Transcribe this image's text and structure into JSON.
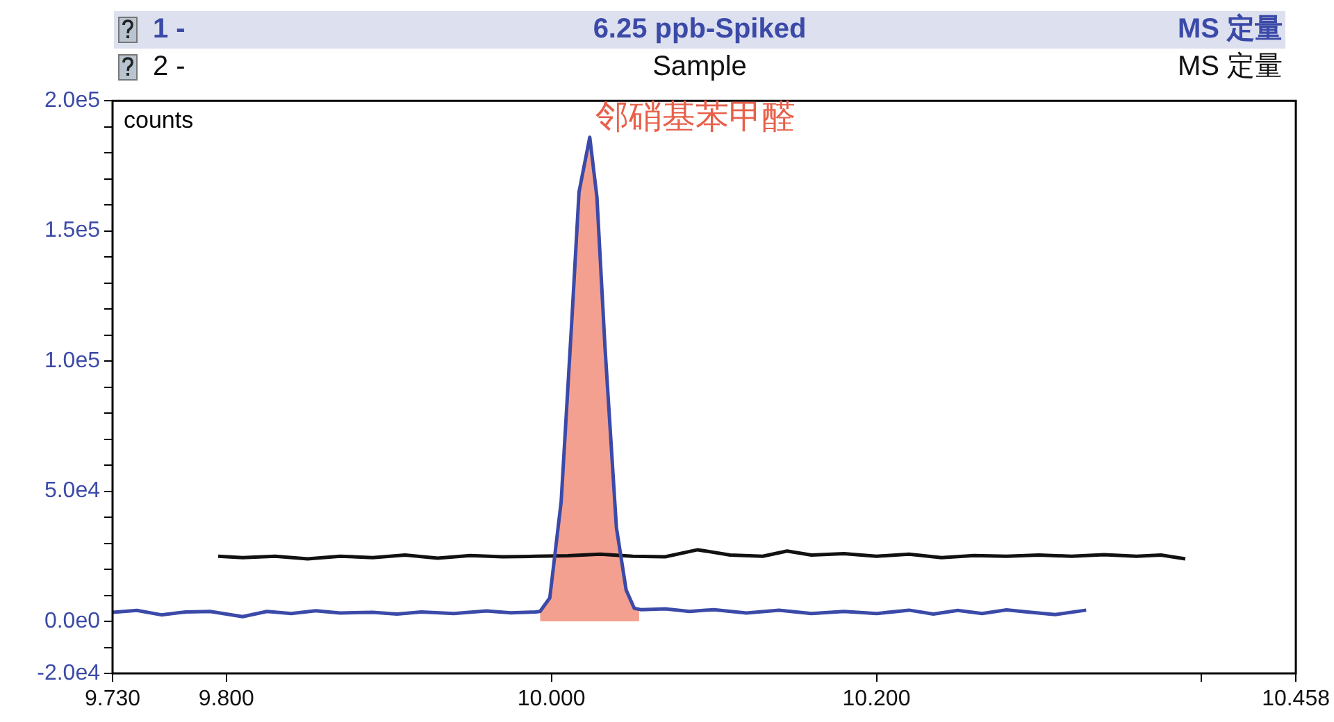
{
  "chart_data": {
    "type": "line",
    "ylabel": "counts",
    "annotations": [
      "1 -",
      "MS 定量",
      "2 -",
      "MS 定量",
      {
        "text": "邻硝基苯甲醛",
        "x": 10.0236,
        "y": 186000
      }
    ],
    "series": [
      {
        "name": "6.25 ppb-Spiked",
        "color": "#3b4aa8",
        "x": [
          9.73,
          9.745,
          9.76,
          9.775,
          9.79,
          9.81,
          9.825,
          9.84,
          9.855,
          9.87,
          9.89,
          9.905,
          9.92,
          9.94,
          9.96,
          9.975,
          9.99,
          9.993,
          9.999,
          10.006,
          10.0125,
          10.017,
          10.0236,
          10.028,
          10.033,
          10.04,
          10.046,
          10.051,
          10.055,
          10.07,
          10.085,
          10.1,
          10.12,
          10.14,
          10.16,
          10.18,
          10.2,
          10.22,
          10.235,
          10.25,
          10.265,
          10.28,
          10.295,
          10.31,
          10.329
        ],
        "values": [
          3500,
          4200,
          2500,
          3600,
          3800,
          1800,
          3800,
          3000,
          4100,
          3200,
          3500,
          2800,
          3600,
          3000,
          4000,
          3300,
          3600,
          3800,
          9000,
          46000,
          115000,
          165000,
          186000,
          163000,
          105000,
          36000,
          12000,
          5000,
          4500,
          4800,
          3800,
          4500,
          3200,
          4300,
          3000,
          3800,
          3000,
          4300,
          2800,
          4200,
          3000,
          4400,
          3500,
          2600,
          4300
        ]
      },
      {
        "name": "Sample",
        "color": "#111111",
        "x": [
          9.795,
          9.81,
          9.83,
          9.85,
          9.87,
          9.89,
          9.91,
          9.93,
          9.95,
          9.97,
          9.99,
          10.01,
          10.03,
          10.05,
          10.07,
          10.09,
          10.11,
          10.13,
          10.145,
          10.16,
          10.18,
          10.2,
          10.22,
          10.24,
          10.26,
          10.28,
          10.3,
          10.32,
          10.34,
          10.36,
          10.375,
          10.39
        ],
        "values": [
          25000,
          24500,
          25000,
          24000,
          25000,
          24500,
          25500,
          24300,
          25300,
          24800,
          25000,
          25200,
          25800,
          25000,
          24800,
          27500,
          25500,
          25000,
          27000,
          25500,
          26000,
          25000,
          25800,
          24500,
          25300,
          25000,
          25500,
          25000,
          25600,
          25000,
          25500,
          24000
        ]
      },
      {
        "type": "area",
        "color": "#f4a090",
        "x": [
          9.993,
          9.999,
          10.006,
          10.0125,
          10.017,
          10.0236,
          10.028,
          10.033,
          10.04,
          10.046,
          10.051,
          10.054
        ],
        "values": [
          3800,
          9000,
          46000,
          115000,
          165000,
          186000,
          163000,
          105000,
          36000,
          12000,
          5000,
          4000
        ]
      }
    ],
    "xlim": [
      9.73,
      10.458
    ],
    "xticks": [
      {
        "value": 9.73,
        "label": "9.730"
      },
      {
        "value": 9.8,
        "label": "9.800"
      },
      {
        "value": 10.0,
        "label": "10.000"
      },
      {
        "value": 10.2,
        "label": "10.200"
      },
      {
        "value": 10.4,
        "label": null
      },
      {
        "value": 10.458,
        "label": "10.458"
      }
    ],
    "ylim": [
      -20000,
      200000
    ],
    "yticks": [
      {
        "value": -20000,
        "label": "-2.0e4"
      },
      {
        "value": -10000,
        "label": null
      },
      {
        "value": 0,
        "label": "0.0e0"
      },
      {
        "value": 10000,
        "label": null
      },
      {
        "value": 20000,
        "label": null
      },
      {
        "value": 30000,
        "label": null
      },
      {
        "value": 40000,
        "label": null
      },
      {
        "value": 50000,
        "label": "5.0e4"
      },
      {
        "value": 60000,
        "label": null
      },
      {
        "value": 70000,
        "label": null
      },
      {
        "value": 80000,
        "label": null
      },
      {
        "value": 90000,
        "label": null
      },
      {
        "value": 100000,
        "label": "1.0e5"
      },
      {
        "value": 110000,
        "label": null
      },
      {
        "value": 120000,
        "label": null
      },
      {
        "value": 130000,
        "label": null
      },
      {
        "value": 140000,
        "label": null
      },
      {
        "value": 150000,
        "label": "1.5e5"
      },
      {
        "value": 160000,
        "label": null
      },
      {
        "value": 170000,
        "label": null
      },
      {
        "value": 180000,
        "label": null
      },
      {
        "value": 190000,
        "label": null
      },
      {
        "value": 200000,
        "label": "2.0e5"
      }
    ],
    "grid": false,
    "legend": "top",
    "marker": "none",
    "line_style": "solid"
  }
}
